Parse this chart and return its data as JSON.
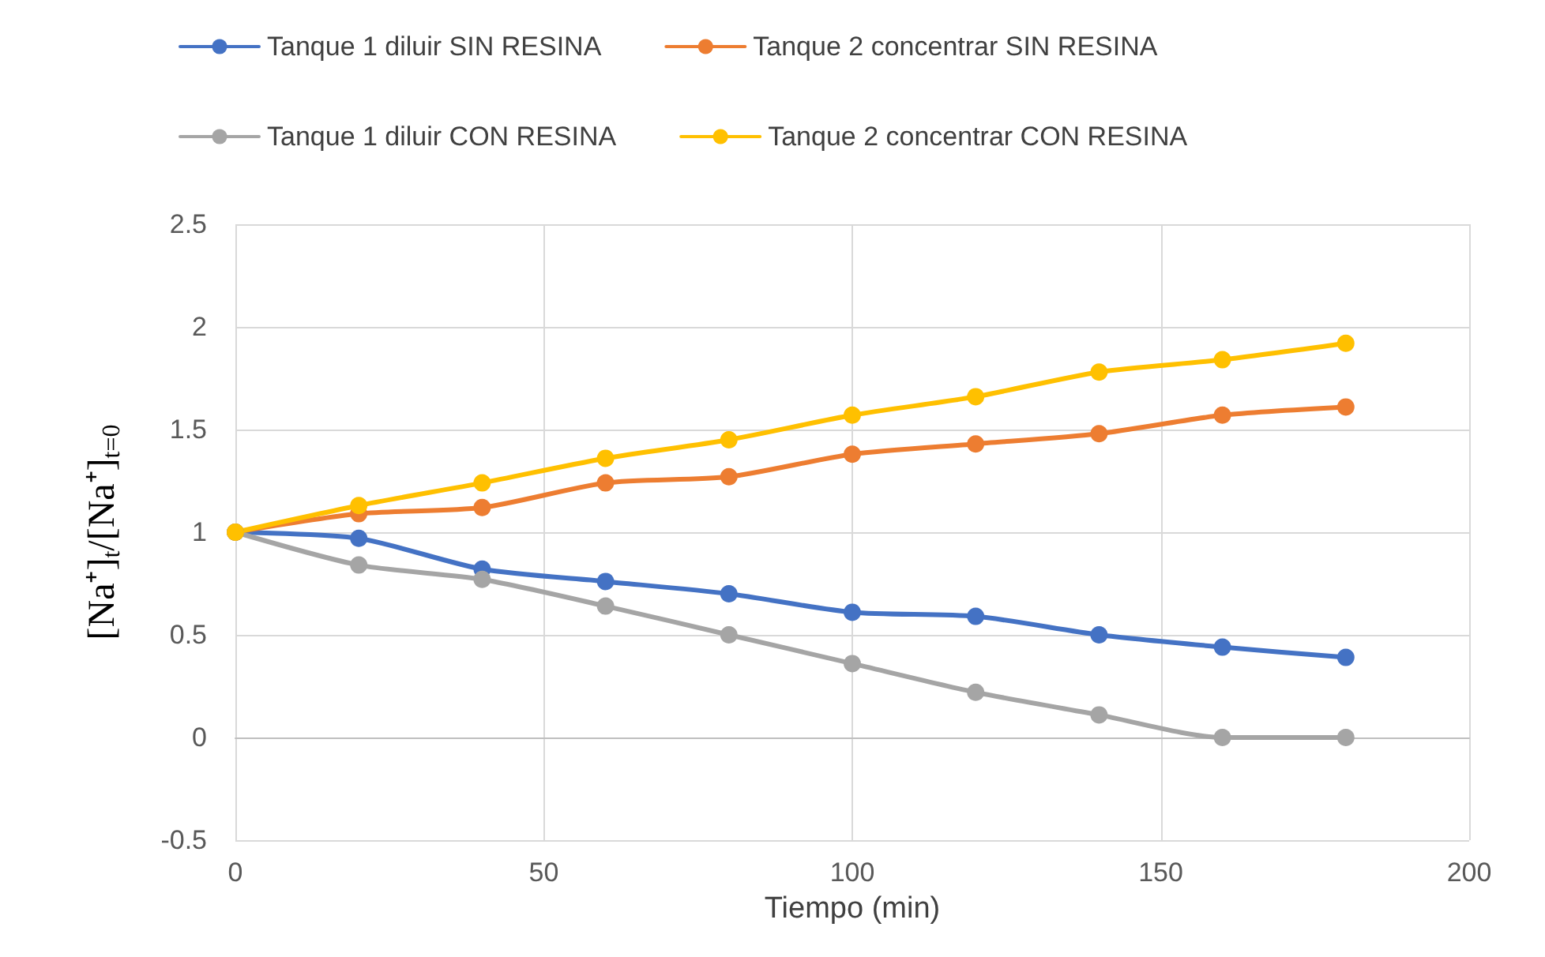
{
  "chart_data": {
    "type": "line",
    "xlabel": "Tiempo (min)",
    "ylabel": "[Na⁺]$_{t}$/[Na⁺]$_{t=0}$",
    "x": [
      0,
      20,
      40,
      60,
      80,
      100,
      120,
      140,
      160,
      180
    ],
    "series": [
      {
        "name": "Tanque 1 diluir SIN RESINA",
        "color": "#4472c4",
        "values": [
          1,
          0.97,
          0.82,
          0.76,
          0.7,
          0.61,
          0.59,
          0.5,
          0.44,
          0.39
        ]
      },
      {
        "name": "Tanque 2 concentrar SIN RESINA",
        "color": "#ed7d31",
        "values": [
          1,
          1.09,
          1.12,
          1.24,
          1.27,
          1.38,
          1.43,
          1.48,
          1.57,
          1.61
        ]
      },
      {
        "name": "Tanque 1 diluir CON RESINA",
        "color": "#a5a5a5",
        "values": [
          1,
          0.84,
          0.77,
          0.64,
          0.5,
          0.36,
          0.22,
          0.11,
          0,
          0
        ]
      },
      {
        "name": "Tanque 2 concentrar CON RESINA",
        "color": "#ffc000",
        "values": [
          1,
          1.13,
          1.24,
          1.36,
          1.45,
          1.57,
          1.66,
          1.78,
          1.84,
          1.92
        ]
      }
    ],
    "xlim": [
      0,
      200
    ],
    "xticks": [
      0,
      50,
      100,
      150,
      200
    ],
    "ylim": [
      -0.5,
      2.5
    ],
    "yticks": [
      -0.5,
      0,
      0.5,
      1,
      1.5,
      2,
      2.5
    ],
    "grid": true,
    "legend": "top",
    "marker": "circle",
    "line_style": "solid"
  }
}
